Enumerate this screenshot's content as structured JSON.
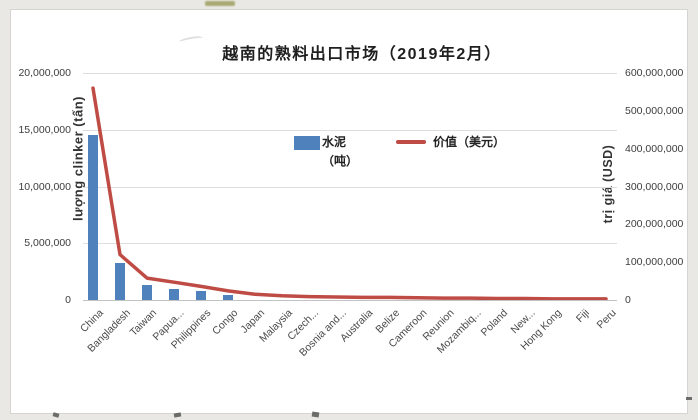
{
  "page": {
    "background": "#e9e8e5",
    "panel_background": "#ffffff"
  },
  "chart_data": {
    "type": "bar",
    "subtype": "combo-bar-line",
    "title": "越南的熟料出口市场（2019年2月）",
    "categories": [
      "China",
      "Bangladesh",
      "Taiwan",
      "Papua...",
      "Philippines",
      "Congo",
      "Japan",
      "Malaysia",
      "Czech...",
      "Bosnia and...",
      "Australia",
      "Belize",
      "Cameroon",
      "Reunion",
      "Mozambiq...",
      "Poland",
      "New...",
      "Hong Kong",
      "Fiji",
      "Peru"
    ],
    "series": [
      {
        "name": "水泥（吨）",
        "type": "bar",
        "axis": "left",
        "color": "#4f81bd",
        "values": [
          14500000,
          3300000,
          1350000,
          1000000,
          800000,
          450000,
          0,
          0,
          0,
          0,
          0,
          0,
          0,
          0,
          0,
          0,
          0,
          0,
          0,
          0
        ]
      },
      {
        "name": "价值（美元）",
        "type": "line",
        "axis": "right",
        "color": "#bf4b45",
        "values": [
          560000000,
          120000000,
          58000000,
          47000000,
          36000000,
          24000000,
          15000000,
          11000000,
          9000000,
          8000000,
          7000000,
          7000000,
          6000000,
          5000000,
          5000000,
          4000000,
          4000000,
          3000000,
          3000000,
          3000000
        ]
      }
    ],
    "left_axis": {
      "title": "lượng clinker (tấn)",
      "min": 0,
      "max": 20000000,
      "tick_step": 5000000,
      "tick_labels": [
        "0",
        "5,000,000",
        "10,000,000",
        "15,000,000",
        "20,000,000"
      ]
    },
    "right_axis": {
      "title": "trị giá (USD)",
      "min": 0,
      "max": 600000000,
      "tick_step": 100000000,
      "tick_labels": [
        "0",
        "100,000,000",
        "200,000,000",
        "300,000,000",
        "400,000,000",
        "500,000,000",
        "600,000,000"
      ]
    },
    "legend": {
      "position": "inside-top-center",
      "items": [
        {
          "label_line1": "水泥",
          "label_line2": "（吨）",
          "swatch": "bar",
          "color": "#4f81bd"
        },
        {
          "label_line1": "价值（美元）",
          "label_line2": "",
          "swatch": "line",
          "color": "#bf4b45"
        }
      ]
    },
    "grid": "horizontal",
    "xlabel_rotation_deg": -45
  }
}
